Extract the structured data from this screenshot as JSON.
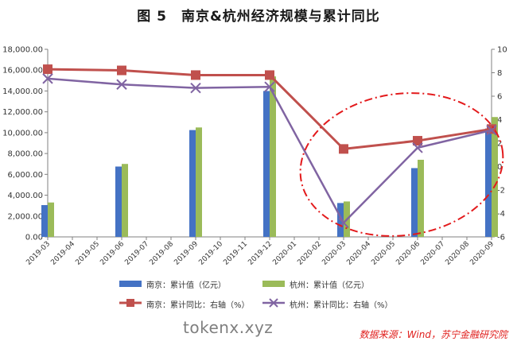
{
  "title": "图 5　南京&杭州经济规模与累计同比",
  "watermark": "tokenx.xyz",
  "source": "数据来源：Wind，苏宁金融研究院",
  "colors": {
    "nanjing_bar": "#4472c4",
    "hangzhou_bar": "#9bbb59",
    "nanjing_line": "#c0504d",
    "hangzhou_line": "#8064a2",
    "ellipse": "#e31a1c"
  },
  "chart_data": {
    "type": "bar",
    "categories": [
      "2019-03",
      "2019-04",
      "2019-05",
      "2019-06",
      "2019-07",
      "2019-08",
      "2019-09",
      "2019-10",
      "2019-11",
      "2019-12",
      "2020-01",
      "2020-02",
      "2020-03",
      "2020-04",
      "2020-05",
      "2020-06",
      "2020-07",
      "2020-08",
      "2020-09"
    ],
    "left_axis": {
      "ylim": [
        0,
        18000
      ],
      "ticks": [
        "0.00",
        "2,000.00",
        "4,000.00",
        "6,000.00",
        "8,000.00",
        "10,000.00",
        "12,000.00",
        "14,000.00",
        "16,000.00",
        "18,000.00"
      ]
    },
    "right_axis": {
      "ylim": [
        -6,
        10
      ],
      "ticks": [
        "-6",
        "-4",
        "-2",
        "0",
        "2",
        "4",
        "6",
        "8",
        "10"
      ]
    },
    "grid": false,
    "legend_position": "bottom",
    "series": [
      {
        "name": "南京：累计值（亿元）",
        "type": "bar",
        "axis": "left",
        "values": [
          3050,
          null,
          null,
          6750,
          null,
          null,
          10250,
          null,
          null,
          14000,
          null,
          null,
          3250,
          null,
          null,
          6600,
          null,
          null,
          10400
        ]
      },
      {
        "name": "杭州：累计值（亿元）",
        "type": "bar",
        "axis": "left",
        "values": [
          3300,
          null,
          null,
          7000,
          null,
          null,
          10500,
          null,
          null,
          15400,
          null,
          null,
          3400,
          null,
          null,
          7400,
          null,
          null,
          11500
        ]
      },
      {
        "name": "南京：累计同比：右轴（%）",
        "type": "line",
        "axis": "right",
        "marker": "square",
        "values": [
          8.3,
          null,
          null,
          8.2,
          null,
          null,
          7.8,
          null,
          null,
          7.8,
          null,
          null,
          1.5,
          null,
          null,
          2.2,
          null,
          null,
          3.2
        ]
      },
      {
        "name": "杭州：累计同比：右轴（%）",
        "type": "line",
        "axis": "right",
        "marker": "x",
        "values": [
          7.5,
          null,
          null,
          7.0,
          null,
          null,
          6.7,
          null,
          null,
          6.8,
          null,
          null,
          -4.8,
          null,
          null,
          1.6,
          null,
          null,
          3.1
        ]
      }
    ]
  }
}
